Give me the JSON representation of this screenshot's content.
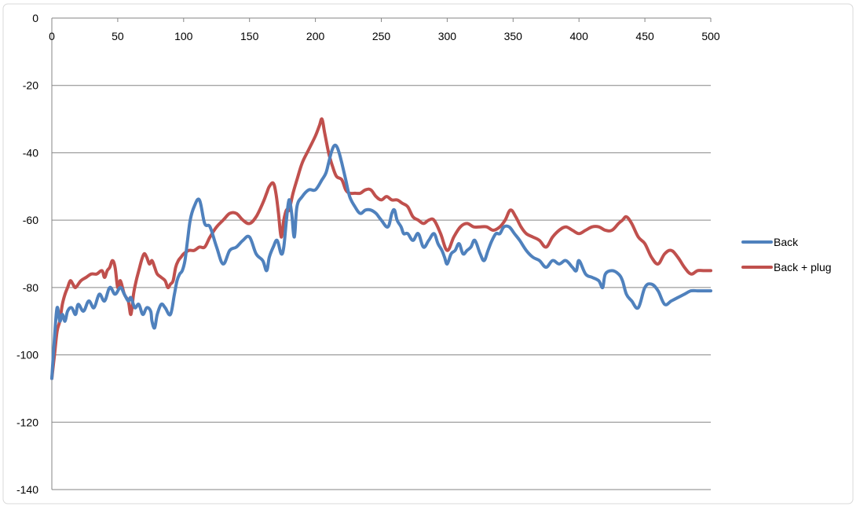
{
  "chart_data": {
    "type": "line",
    "title": "",
    "xlabel": "",
    "ylabel": "",
    "xlim": [
      0,
      500
    ],
    "ylim": [
      -140,
      0
    ],
    "x_ticks": [
      0,
      50,
      100,
      150,
      200,
      250,
      300,
      350,
      400,
      450,
      500
    ],
    "y_ticks": [
      0,
      -20,
      -40,
      -60,
      -80,
      -100,
      -120,
      -140
    ],
    "x_tick_labels": [
      "0",
      "50",
      "100",
      "150",
      "200",
      "250",
      "300",
      "350",
      "400",
      "450",
      "500"
    ],
    "y_tick_labels": [
      "0",
      "-20",
      "-40",
      "-60",
      "-80",
      "-100",
      "-120",
      "-140"
    ],
    "grid": "horizontal",
    "x_axis_position": "top",
    "legend_position": "right",
    "series": [
      {
        "name": "Back",
        "color": "#4F81BD",
        "x": [
          0,
          2,
          4,
          6,
          8,
          10,
          12,
          15,
          18,
          20,
          24,
          28,
          32,
          36,
          40,
          44,
          48,
          52,
          55,
          58,
          60,
          63,
          66,
          69,
          72,
          75,
          76,
          78,
          80,
          83,
          86,
          90,
          93,
          95,
          97,
          99,
          101,
          103,
          105,
          108,
          112,
          116,
          120,
          125,
          130,
          135,
          140,
          145,
          150,
          155,
          160,
          163,
          165,
          168,
          171,
          174,
          176,
          178,
          180,
          182,
          184,
          186,
          190,
          195,
          200,
          205,
          208,
          210,
          212,
          214,
          216,
          218,
          220,
          223,
          226,
          230,
          234,
          238,
          242,
          246,
          250,
          255,
          258,
          260,
          262,
          265,
          267,
          270,
          274,
          278,
          282,
          286,
          290,
          293,
          296,
          298,
          300,
          303,
          306,
          309,
          312,
          315,
          318,
          321,
          325,
          328,
          331,
          334,
          337,
          340,
          343,
          347,
          351,
          355,
          360,
          365,
          370,
          375,
          380,
          385,
          390,
          395,
          398,
          400,
          405,
          410,
          415,
          418,
          420,
          425,
          430,
          433,
          436,
          440,
          445,
          450,
          455,
          460,
          465,
          470,
          475,
          480,
          485,
          490,
          495,
          500
        ],
        "y": [
          -107,
          -95,
          -86,
          -90,
          -88,
          -90,
          -87,
          -86,
          -88,
          -85,
          -87,
          -84,
          -86,
          -82,
          -84,
          -80,
          -82,
          -80,
          -82,
          -84,
          -83,
          -86,
          -85,
          -88,
          -86,
          -87,
          -90,
          -92,
          -88,
          -85,
          -86,
          -88,
          -82,
          -78,
          -76,
          -75,
          -72,
          -66,
          -60,
          -56,
          -54,
          -61,
          -62,
          -68,
          -73,
          -69,
          -68,
          -66,
          -65,
          -70,
          -72,
          -75,
          -71,
          -68,
          -66,
          -70,
          -68,
          -60,
          -54,
          -58,
          -65,
          -56,
          -53,
          -51,
          -51,
          -48,
          -46,
          -43,
          -40,
          -38,
          -38,
          -40,
          -43,
          -48,
          -53,
          -56,
          -58,
          -57,
          -57,
          -58,
          -60,
          -62,
          -58,
          -57,
          -60,
          -62,
          -64,
          -64,
          -66,
          -64,
          -68,
          -66,
          -64,
          -67,
          -69,
          -71,
          -73,
          -70,
          -69,
          -67,
          -70,
          -69,
          -68,
          -66,
          -70,
          -72,
          -69,
          -66,
          -64,
          -64,
          -62,
          -62,
          -64,
          -66,
          -69,
          -71,
          -72,
          -74,
          -72,
          -73,
          -72,
          -74,
          -75,
          -72,
          -76,
          -77,
          -78,
          -80,
          -76,
          -75,
          -76,
          -78,
          -82,
          -84,
          -86,
          -80,
          -79,
          -81,
          -85,
          -84,
          -83,
          -82,
          -81,
          -81,
          -81,
          -81
        ]
      },
      {
        "name": "Back + plug",
        "color": "#C0504D",
        "x": [
          0,
          2,
          4,
          6,
          8,
          10,
          12,
          14,
          16,
          18,
          22,
          26,
          30,
          34,
          38,
          40,
          42,
          44,
          46,
          48,
          50,
          52,
          55,
          58,
          60,
          62,
          64,
          66,
          68,
          70,
          72,
          74,
          76,
          78,
          80,
          83,
          86,
          88,
          90,
          92,
          94,
          96,
          98,
          100,
          104,
          108,
          112,
          116,
          120,
          125,
          130,
          135,
          140,
          145,
          150,
          155,
          160,
          163,
          165,
          168,
          170,
          172,
          174,
          176,
          178,
          180,
          183,
          186,
          190,
          195,
          200,
          203,
          205,
          207,
          210,
          213,
          216,
          220,
          223,
          226,
          230,
          234,
          238,
          242,
          246,
          250,
          254,
          258,
          262,
          266,
          270,
          274,
          278,
          282,
          286,
          290,
          295,
          300,
          305,
          310,
          315,
          320,
          325,
          330,
          335,
          340,
          344,
          348,
          352,
          356,
          360,
          365,
          370,
          375,
          380,
          385,
          390,
          395,
          400,
          405,
          410,
          415,
          420,
          425,
          430,
          433,
          436,
          440,
          445,
          450,
          455,
          460,
          465,
          470,
          475,
          480,
          485,
          490,
          495,
          500
        ],
        "y": [
          -107,
          -100,
          -93,
          -90,
          -85,
          -82,
          -80,
          -78,
          -79,
          -80,
          -78,
          -77,
          -76,
          -76,
          -75,
          -77,
          -75,
          -74,
          -72,
          -74,
          -80,
          -78,
          -82,
          -84,
          -88,
          -82,
          -78,
          -75,
          -72,
          -70,
          -71,
          -73,
          -72,
          -74,
          -76,
          -77,
          -78,
          -80,
          -79,
          -78,
          -74,
          -72,
          -71,
          -70,
          -69,
          -69,
          -68,
          -68,
          -65,
          -62,
          -60,
          -58,
          -58,
          -60,
          -61,
          -59,
          -55,
          -52,
          -50,
          -49,
          -52,
          -58,
          -65,
          -60,
          -57,
          -57,
          -52,
          -48,
          -43,
          -39,
          -35,
          -32,
          -30,
          -34,
          -40,
          -44,
          -47,
          -48,
          -51,
          -52,
          -52,
          -52,
          -51,
          -51,
          -53,
          -54,
          -53,
          -54,
          -54,
          -55,
          -56,
          -59,
          -60,
          -61,
          -60,
          -60,
          -64,
          -69,
          -65,
          -62,
          -61,
          -62,
          -62,
          -62,
          -63,
          -62,
          -60,
          -57,
          -59,
          -62,
          -64,
          -65,
          -66,
          -68,
          -65,
          -63,
          -62,
          -63,
          -64,
          -63,
          -62,
          -62,
          -63,
          -63,
          -61,
          -60,
          -59,
          -61,
          -65,
          -67,
          -71,
          -73,
          -70,
          -69,
          -71,
          -74,
          -76,
          -75,
          -75,
          -75
        ]
      }
    ]
  }
}
